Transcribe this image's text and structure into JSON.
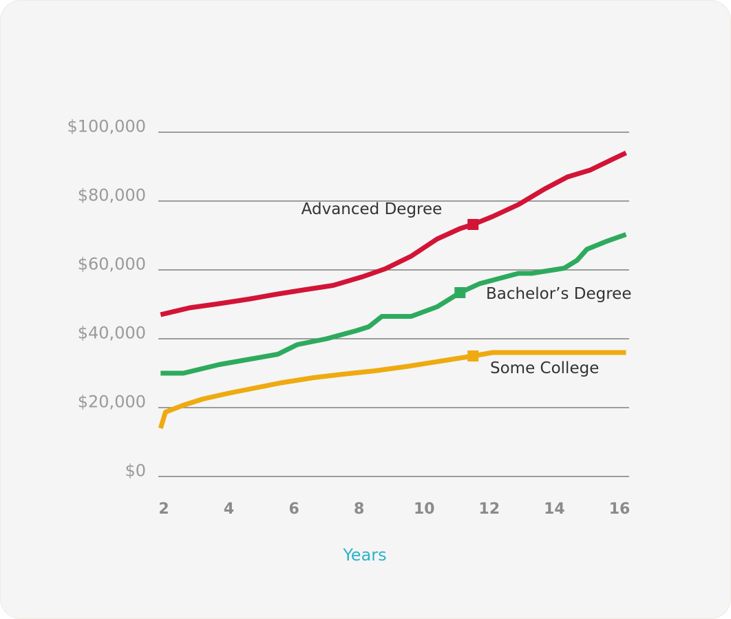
{
  "chart_data": {
    "type": "line",
    "title": "",
    "xlabel": "Years",
    "ylabel": "",
    "xlim": [
      2,
      16
    ],
    "ylim": [
      0,
      100000
    ],
    "x_ticks": [
      "2",
      "4",
      "6",
      "8",
      "10",
      "12",
      "14",
      "16"
    ],
    "y_ticks": [
      "$0",
      "$20,000",
      "$40,000",
      "$60,000",
      "$80,000",
      "$100,000"
    ],
    "grid": true,
    "legend": "none",
    "colors": {
      "xlabel": "#2bb3c8",
      "grid": "#7f7f7f"
    },
    "series": [
      {
        "name": "Advanced Degree",
        "color": "#d21437",
        "marker_x": 11.5,
        "x": [
          1.9,
          2.8,
          3.7,
          4.6,
          5.5,
          6.3,
          7.2,
          8.1,
          8.8,
          9.6,
          10.4,
          11.1,
          11.5,
          12.1,
          12.9,
          13.7,
          14.4,
          15.1,
          15.8,
          16.2
        ],
        "y": [
          47000,
          49000,
          50200,
          51500,
          53000,
          54200,
          55500,
          58000,
          60300,
          64000,
          69000,
          72000,
          73200,
          75500,
          79000,
          83500,
          87000,
          89000,
          92200,
          94000
        ]
      },
      {
        "name": "Bachelor’s Degree",
        "color": "#2eaa5e",
        "marker_x": 11.1,
        "x": [
          1.9,
          2.6,
          3.7,
          4.6,
          5.5,
          6.1,
          7.0,
          7.9,
          8.3,
          8.7,
          9.6,
          10.4,
          11.1,
          11.7,
          12.3,
          12.9,
          13.3,
          14.3,
          14.7,
          15.0,
          15.6,
          16.2
        ],
        "y": [
          30000,
          30000,
          32500,
          34000,
          35500,
          38300,
          40000,
          42300,
          43500,
          46500,
          46500,
          49300,
          53400,
          56000,
          57500,
          59000,
          59000,
          60500,
          62800,
          66000,
          68300,
          70300
        ]
      },
      {
        "name": "Some College",
        "color": "#eeaa10",
        "marker_x": 11.5,
        "x": [
          1.9,
          2.05,
          2.6,
          3.2,
          4.0,
          4.8,
          5.6,
          6.6,
          7.5,
          8.5,
          9.5,
          10.5,
          11.5,
          12.1,
          13.0,
          14.0,
          15.0,
          16.2
        ],
        "y": [
          14000,
          18700,
          20700,
          22500,
          24200,
          25700,
          27200,
          28700,
          29700,
          30700,
          32000,
          33500,
          35000,
          36000,
          36000,
          36000,
          36000,
          36000
        ]
      }
    ]
  }
}
